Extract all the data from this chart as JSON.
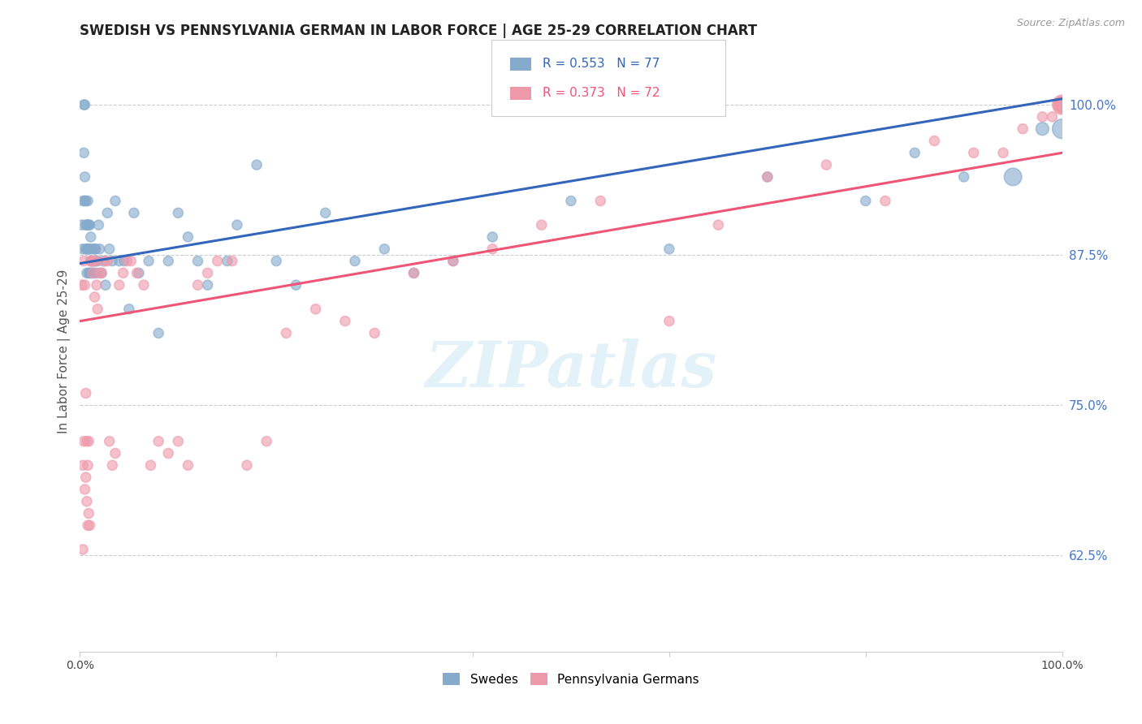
{
  "title": "SWEDISH VS PENNSYLVANIA GERMAN IN LABOR FORCE | AGE 25-29 CORRELATION CHART",
  "source": "Source: ZipAtlas.com",
  "ylabel": "In Labor Force | Age 25-29",
  "right_yticks": [
    0.625,
    0.75,
    0.875,
    1.0
  ],
  "right_yticklabels": [
    "62.5%",
    "75.0%",
    "87.5%",
    "100.0%"
  ],
  "xmin": 0.0,
  "xmax": 1.0,
  "ymin": 0.545,
  "ymax": 1.045,
  "legend_blue_r": "R = 0.553",
  "legend_blue_n": "N = 77",
  "legend_pink_r": "R = 0.373",
  "legend_pink_n": "N = 72",
  "legend_label_blue": "Swedes",
  "legend_label_pink": "Pennsylvania Germans",
  "blue_color": "#85AACC",
  "pink_color": "#EE99AA",
  "blue_line_color": "#3366BB",
  "pink_line_color": "#EE5577",
  "watermark": "ZIPatlas",
  "watermark_color": "#BBDDEE",
  "swedish_x": [
    0.002,
    0.003,
    0.003,
    0.004,
    0.004,
    0.005,
    0.005,
    0.005,
    0.006,
    0.006,
    0.006,
    0.007,
    0.007,
    0.007,
    0.008,
    0.008,
    0.008,
    0.009,
    0.009,
    0.009,
    0.01,
    0.01,
    0.01,
    0.011,
    0.011,
    0.012,
    0.012,
    0.013,
    0.013,
    0.014,
    0.015,
    0.015,
    0.016,
    0.016,
    0.017,
    0.018,
    0.019,
    0.02,
    0.022,
    0.024,
    0.026,
    0.028,
    0.03,
    0.033,
    0.036,
    0.04,
    0.045,
    0.05,
    0.055,
    0.06,
    0.07,
    0.08,
    0.09,
    0.1,
    0.11,
    0.12,
    0.13,
    0.15,
    0.16,
    0.18,
    0.2,
    0.22,
    0.25,
    0.28,
    0.31,
    0.34,
    0.38,
    0.42,
    0.5,
    0.6,
    0.7,
    0.8,
    0.85,
    0.9,
    0.95,
    0.98,
    1.0
  ],
  "swedish_y": [
    0.9,
    0.92,
    0.88,
    0.96,
    1.0,
    0.92,
    0.94,
    1.0,
    0.88,
    0.9,
    0.92,
    0.86,
    0.88,
    0.9,
    0.88,
    0.9,
    0.92,
    0.86,
    0.88,
    0.9,
    0.86,
    0.88,
    0.9,
    0.87,
    0.89,
    0.86,
    0.87,
    0.87,
    0.88,
    0.86,
    0.87,
    0.88,
    0.87,
    0.88,
    0.86,
    0.87,
    0.9,
    0.88,
    0.86,
    0.87,
    0.85,
    0.91,
    0.88,
    0.87,
    0.92,
    0.87,
    0.87,
    0.83,
    0.91,
    0.86,
    0.87,
    0.81,
    0.87,
    0.91,
    0.89,
    0.87,
    0.85,
    0.87,
    0.9,
    0.95,
    0.87,
    0.85,
    0.91,
    0.87,
    0.88,
    0.86,
    0.87,
    0.89,
    0.92,
    0.88,
    0.94,
    0.92,
    0.96,
    0.94,
    0.94,
    0.98,
    0.98
  ],
  "swedish_size_raw": [
    1,
    1,
    1,
    1,
    1,
    1,
    1,
    1,
    1,
    1,
    1,
    1,
    1,
    1,
    1,
    1,
    1,
    1,
    1,
    1,
    1,
    1,
    1,
    1,
    1,
    1,
    1,
    1,
    1,
    1,
    1,
    1,
    1,
    1,
    1,
    1,
    1,
    1,
    1,
    1,
    1,
    1,
    1,
    1,
    1,
    1,
    1,
    1,
    1,
    1,
    1,
    1,
    1,
    1,
    1,
    1,
    1,
    1,
    1,
    1,
    1,
    1,
    1,
    1,
    1,
    1,
    1,
    1,
    1,
    1,
    1,
    1,
    1,
    1,
    4,
    2,
    5
  ],
  "pagerman_x": [
    0.002,
    0.003,
    0.003,
    0.004,
    0.004,
    0.005,
    0.005,
    0.006,
    0.006,
    0.007,
    0.007,
    0.008,
    0.008,
    0.009,
    0.009,
    0.01,
    0.011,
    0.012,
    0.013,
    0.014,
    0.015,
    0.016,
    0.017,
    0.018,
    0.02,
    0.022,
    0.025,
    0.028,
    0.03,
    0.033,
    0.036,
    0.04,
    0.044,
    0.048,
    0.052,
    0.058,
    0.065,
    0.072,
    0.08,
    0.09,
    0.1,
    0.11,
    0.12,
    0.13,
    0.14,
    0.155,
    0.17,
    0.19,
    0.21,
    0.24,
    0.27,
    0.3,
    0.34,
    0.38,
    0.42,
    0.47,
    0.53,
    0.6,
    0.65,
    0.7,
    0.76,
    0.82,
    0.87,
    0.91,
    0.94,
    0.96,
    0.98,
    0.99,
    1.0,
    1.0,
    1.0,
    1.0
  ],
  "pagerman_y": [
    0.85,
    0.7,
    0.63,
    0.87,
    0.72,
    0.68,
    0.85,
    0.69,
    0.76,
    0.67,
    0.72,
    0.65,
    0.7,
    0.66,
    0.72,
    0.65,
    0.87,
    0.87,
    0.86,
    0.87,
    0.84,
    0.87,
    0.85,
    0.83,
    0.86,
    0.86,
    0.87,
    0.87,
    0.72,
    0.7,
    0.71,
    0.85,
    0.86,
    0.87,
    0.87,
    0.86,
    0.85,
    0.7,
    0.72,
    0.71,
    0.72,
    0.7,
    0.85,
    0.86,
    0.87,
    0.87,
    0.7,
    0.72,
    0.81,
    0.83,
    0.82,
    0.81,
    0.86,
    0.87,
    0.88,
    0.9,
    0.92,
    0.82,
    0.9,
    0.94,
    0.95,
    0.92,
    0.97,
    0.96,
    0.96,
    0.98,
    0.99,
    0.99,
    1.0,
    1.0,
    1.0,
    1.0
  ],
  "pagerman_size_raw": [
    1,
    1,
    1,
    1,
    1,
    1,
    1,
    1,
    1,
    1,
    1,
    1,
    1,
    1,
    1,
    1,
    1,
    1,
    1,
    1,
    1,
    1,
    1,
    1,
    1,
    1,
    1,
    1,
    1,
    1,
    1,
    1,
    1,
    1,
    1,
    1,
    1,
    1,
    1,
    1,
    1,
    1,
    1,
    1,
    1,
    1,
    1,
    1,
    1,
    1,
    1,
    1,
    1,
    1,
    1,
    1,
    1,
    1,
    1,
    1,
    1,
    1,
    1,
    1,
    1,
    1,
    1,
    1,
    4,
    3,
    5,
    2
  ]
}
